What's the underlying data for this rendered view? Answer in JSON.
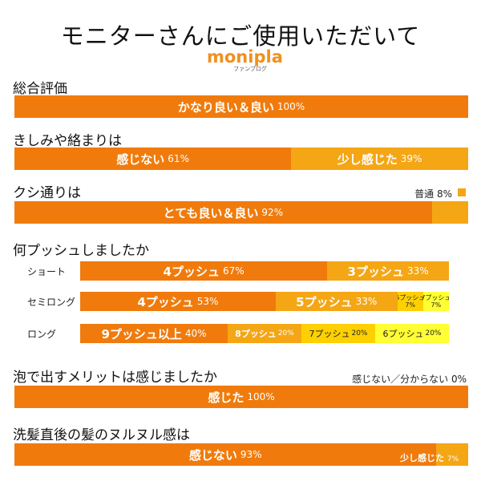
{
  "title": "モニターさんにご使用いただいて",
  "logo": {
    "main": "monipla",
    "sub": "ファンブログ"
  },
  "colors": {
    "primary": "#f07b0c",
    "secondary": "#f5a615",
    "tertiary": "#ffd000",
    "quaternary": "#ffff33"
  },
  "chart_data": [
    {
      "type": "bar",
      "title": "総合評価",
      "series": [
        {
          "name": "かなり良い＆良い",
          "values": [
            100
          ]
        }
      ]
    },
    {
      "type": "bar",
      "title": "きしみや絡まりは",
      "series": [
        {
          "name": "感じない",
          "values": [
            61
          ]
        },
        {
          "name": "少し感じた",
          "values": [
            39
          ]
        }
      ]
    },
    {
      "type": "bar",
      "title": "クシ通りは",
      "series": [
        {
          "name": "とても良い＆良い",
          "values": [
            92
          ]
        },
        {
          "name": "普通",
          "values": [
            8
          ]
        }
      ]
    },
    {
      "type": "bar",
      "title": "何プッシュしましたか",
      "categories": [
        "ショート",
        "セミロング",
        "ロング"
      ],
      "rows": [
        {
          "category": "ショート",
          "segments": [
            {
              "name": "4プッシュ",
              "value": 67
            },
            {
              "name": "3プッシュ",
              "value": 33
            }
          ]
        },
        {
          "category": "セミロング",
          "segments": [
            {
              "name": "4プッシュ",
              "value": 53
            },
            {
              "name": "5プッシュ",
              "value": 33
            },
            {
              "name": "6プッシュ",
              "value": 7
            },
            {
              "name": "7プッシュ",
              "value": 7
            }
          ]
        },
        {
          "category": "ロング",
          "segments": [
            {
              "name": "9プッシュ以上",
              "value": 40
            },
            {
              "name": "8プッシュ",
              "value": 20
            },
            {
              "name": "7プッシュ",
              "value": 20
            },
            {
              "name": "6プッシュ",
              "value": 20
            }
          ]
        }
      ]
    },
    {
      "type": "bar",
      "title": "泡で出すメリットは感じましたか",
      "series": [
        {
          "name": "感じた",
          "values": [
            100
          ]
        },
        {
          "name": "感じない／分からない",
          "values": [
            0
          ]
        }
      ]
    },
    {
      "type": "bar",
      "title": "洗髪直後の髪のヌルヌル感は",
      "series": [
        {
          "name": "感じない",
          "values": [
            93
          ]
        },
        {
          "name": "少し感じた",
          "values": [
            7
          ]
        }
      ]
    }
  ]
}
